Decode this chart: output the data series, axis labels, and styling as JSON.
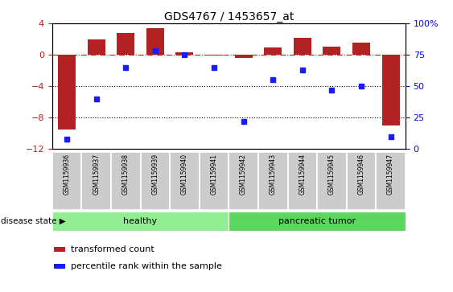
{
  "title": "GDS4767 / 1453657_at",
  "samples": [
    "GSM1159936",
    "GSM1159937",
    "GSM1159938",
    "GSM1159939",
    "GSM1159940",
    "GSM1159941",
    "GSM1159942",
    "GSM1159943",
    "GSM1159944",
    "GSM1159945",
    "GSM1159946",
    "GSM1159947"
  ],
  "transformed_count": [
    -9.5,
    2.0,
    2.8,
    3.4,
    0.3,
    -0.05,
    -0.4,
    0.9,
    2.2,
    1.0,
    1.5,
    -9.0
  ],
  "percentile_rank": [
    8,
    40,
    65,
    78,
    75,
    65,
    22,
    55,
    63,
    47,
    50,
    10
  ],
  "healthy_count": 6,
  "tumor_count": 6,
  "bar_color": "#b22222",
  "dot_color": "#1a1aff",
  "left_ylim": [
    -12,
    4
  ],
  "left_yticks": [
    -12,
    -8,
    -4,
    0,
    4
  ],
  "right_ylim": [
    0,
    100
  ],
  "right_yticks": [
    0,
    25,
    50,
    75,
    100
  ],
  "right_yticklabels": [
    "0",
    "25",
    "50",
    "75",
    "100%"
  ],
  "hline_y_left": [
    0,
    -4,
    -8
  ],
  "healthy_label": "healthy",
  "tumor_label": "pancreatic tumor",
  "disease_state_label": "disease state",
  "legend_bar_label": "transformed count",
  "legend_dot_label": "percentile rank within the sample",
  "healthy_color": "#90ee90",
  "tumor_color": "#5cd65c",
  "tick_bg_color": "#cccccc",
  "background_color": "#ffffff"
}
